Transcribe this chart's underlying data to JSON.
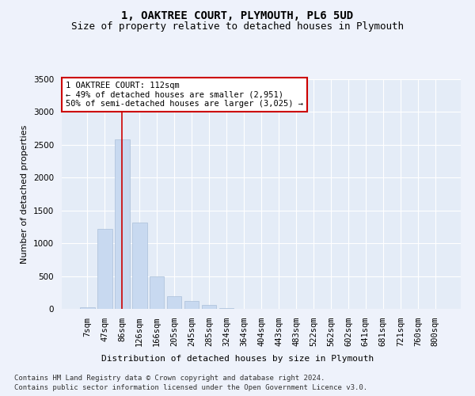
{
  "title": "1, OAKTREE COURT, PLYMOUTH, PL6 5UD",
  "subtitle": "Size of property relative to detached houses in Plymouth",
  "xlabel": "Distribution of detached houses by size in Plymouth",
  "ylabel": "Number of detached properties",
  "categories": [
    "7sqm",
    "47sqm",
    "86sqm",
    "126sqm",
    "166sqm",
    "205sqm",
    "245sqm",
    "285sqm",
    "324sqm",
    "364sqm",
    "404sqm",
    "443sqm",
    "483sqm",
    "522sqm",
    "562sqm",
    "602sqm",
    "641sqm",
    "681sqm",
    "721sqm",
    "760sqm",
    "800sqm"
  ],
  "values": [
    30,
    1220,
    2580,
    1310,
    490,
    195,
    120,
    55,
    10,
    5,
    2,
    1,
    0,
    0,
    0,
    0,
    0,
    0,
    0,
    0,
    0
  ],
  "bar_color": "#c8d9f0",
  "bar_edge_color": "#aabfd8",
  "highlight_color": "#cc0000",
  "highlight_bar_index": 2,
  "annotation_text": "1 OAKTREE COURT: 112sqm\n← 49% of detached houses are smaller (2,951)\n50% of semi-detached houses are larger (3,025) →",
  "annotation_box_color": "#ffffff",
  "annotation_box_edge_color": "#cc0000",
  "ylim": [
    0,
    3500
  ],
  "yticks": [
    0,
    500,
    1000,
    1500,
    2000,
    2500,
    3000,
    3500
  ],
  "footer_line1": "Contains HM Land Registry data © Crown copyright and database right 2024.",
  "footer_line2": "Contains public sector information licensed under the Open Government Licence v3.0.",
  "bg_color": "#eef2fb",
  "plot_bg_color": "#e4ecf7",
  "grid_color": "#ffffff",
  "title_fontsize": 10,
  "subtitle_fontsize": 9,
  "axis_label_fontsize": 8,
  "tick_fontsize": 7.5,
  "annotation_fontsize": 7.5,
  "footer_fontsize": 6.5
}
